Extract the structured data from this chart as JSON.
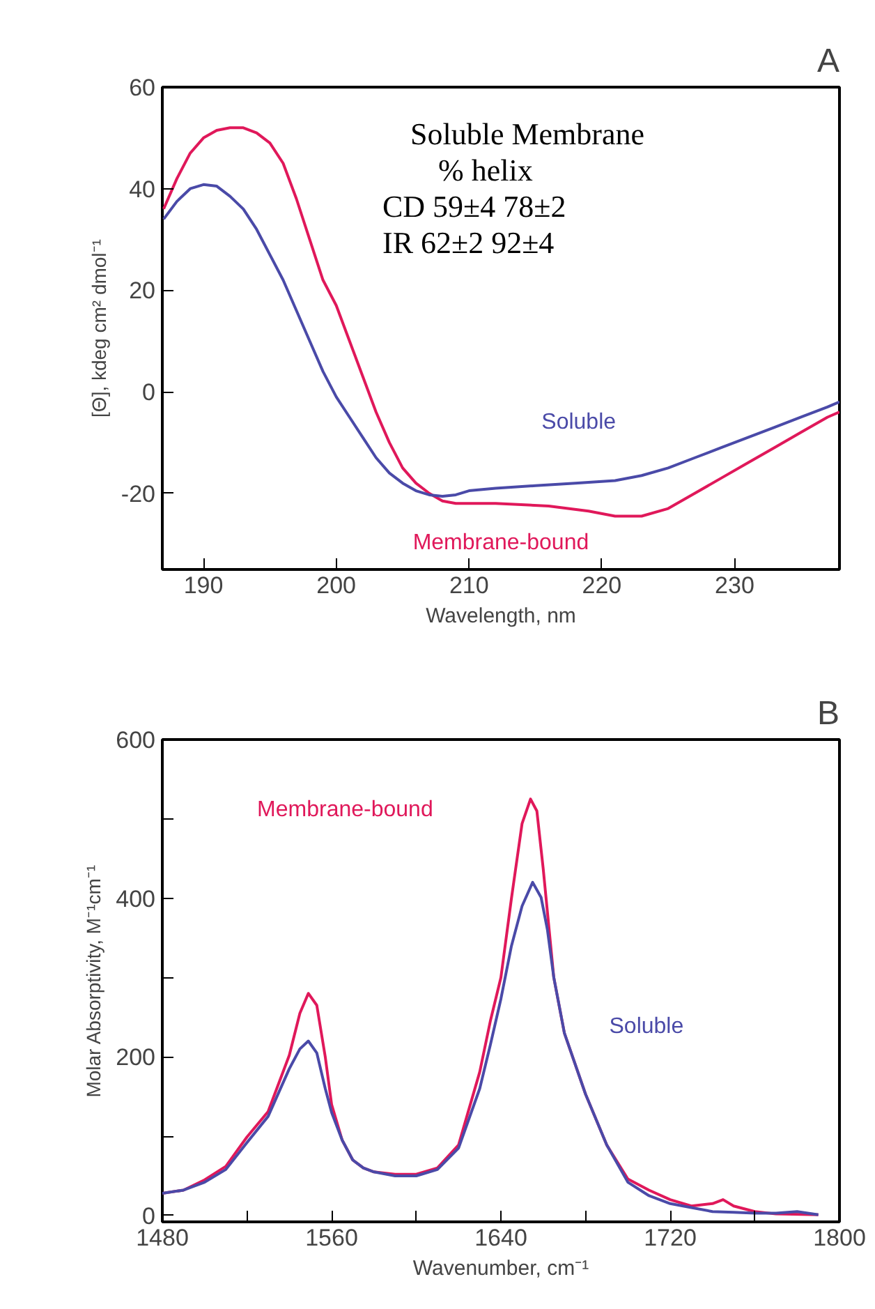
{
  "chart_data": [
    {
      "type": "line",
      "title": "A",
      "xlabel": "Wavelength, nm",
      "ylabel": "[Θ], kdeg cm² dmol⁻¹",
      "xlim": [
        186.9,
        237.9
      ],
      "ylim": [
        -35,
        60
      ],
      "xticks": [
        190,
        200,
        210,
        220,
        230
      ],
      "yticks": [
        -20,
        0,
        20,
        40,
        60
      ],
      "grid": false,
      "marker": "none",
      "line_style": "solid",
      "annotations": [
        "Soluble  Membrane",
        "% helix",
        "CD   59±4      78±2",
        "IR    62±2      92±4"
      ],
      "series": [
        {
          "name": "Membrane-bound",
          "color": "#e0185a",
          "x": [
            187,
            188,
            189,
            190,
            191,
            192,
            193,
            194,
            195,
            196,
            197,
            198,
            199,
            200,
            201,
            202,
            203,
            204,
            205,
            206,
            207,
            208,
            209,
            212,
            216,
            219,
            221,
            223,
            225,
            227,
            229,
            231,
            233,
            235,
            237,
            237.9
          ],
          "values": [
            36,
            42,
            47,
            50,
            51.5,
            52,
            52,
            51,
            49,
            45,
            38,
            30,
            22,
            17,
            10,
            3,
            -4,
            -10,
            -15,
            -18,
            -20,
            -21.5,
            -22,
            -22,
            -22.5,
            -23.5,
            -24.5,
            -24.5,
            -23,
            -20,
            -17,
            -14,
            -11,
            -8,
            -5,
            -4
          ]
        },
        {
          "name": "Soluble",
          "color": "#4a4aa8",
          "x": [
            187,
            188,
            189,
            190,
            191,
            192,
            193,
            194,
            195,
            196,
            197,
            198,
            199,
            200,
            201,
            202,
            203,
            204,
            205,
            206,
            207,
            208,
            209,
            210,
            212,
            215,
            218,
            221,
            223,
            225,
            227,
            229,
            231,
            233,
            235,
            237,
            237.9
          ],
          "values": [
            34,
            37.5,
            40,
            40.8,
            40.5,
            38.5,
            36,
            32,
            27,
            22,
            16,
            10,
            4,
            -1,
            -5,
            -9,
            -13,
            -16,
            -18,
            -19.5,
            -20.3,
            -20.6,
            -20.3,
            -19.5,
            -19,
            -18.5,
            -18,
            -17.5,
            -16.5,
            -15,
            -13,
            -11,
            -9,
            -7,
            -5,
            -3,
            -2
          ]
        }
      ]
    },
    {
      "type": "line",
      "title": "B",
      "xlabel": "Wavenumber, cm⁻¹",
      "ylabel": "Molar Absorptivity, M⁻¹cm⁻¹",
      "xlim": [
        1480,
        1800
      ],
      "ylim": [
        -8,
        600
      ],
      "xticks": [
        1480,
        {
          "value": 1520,
          "label": null
        },
        1560,
        {
          "value": 1600,
          "label": null
        },
        1640,
        {
          "value": 1680,
          "label": null
        },
        1720,
        {
          "value": 1760,
          "label": null
        },
        1800
      ],
      "yticks": [
        0,
        {
          "value": 100,
          "label": null
        },
        200,
        {
          "value": 300,
          "label": null
        },
        400,
        {
          "value": 500,
          "label": null
        },
        600
      ],
      "grid": false,
      "marker": "none",
      "line_style": "solid",
      "series": [
        {
          "name": "Membrane-bound",
          "color": "#e0185a",
          "x": [
            1480,
            1490,
            1500,
            1510,
            1520,
            1530,
            1540,
            1545,
            1549,
            1553,
            1557,
            1560,
            1565,
            1570,
            1575,
            1580,
            1590,
            1600,
            1610,
            1620,
            1630,
            1635,
            1640,
            1645,
            1650,
            1654,
            1657,
            1660,
            1665,
            1670,
            1680,
            1690,
            1700,
            1710,
            1720,
            1730,
            1740,
            1745,
            1750,
            1760,
            1770,
            1790
          ],
          "values": [
            28,
            32,
            45,
            62,
            99,
            131,
            202,
            255,
            280,
            265,
            200,
            140,
            95,
            70,
            60,
            55,
            52,
            52,
            60,
            89,
            181,
            245,
            300,
            400,
            494,
            525,
            510,
            437,
            300,
            230,
            153,
            89,
            46,
            32,
            20,
            12,
            15,
            20,
            12,
            5,
            2,
            1
          ]
        },
        {
          "name": "Soluble",
          "color": "#4a4aa8",
          "x": [
            1480,
            1490,
            1500,
            1510,
            1520,
            1530,
            1540,
            1545,
            1549,
            1553,
            1557,
            1560,
            1565,
            1570,
            1575,
            1580,
            1590,
            1600,
            1610,
            1620,
            1630,
            1635,
            1640,
            1645,
            1650,
            1655,
            1659,
            1662,
            1665,
            1670,
            1680,
            1690,
            1700,
            1710,
            1720,
            1730,
            1740,
            1750,
            1760,
            1770,
            1780,
            1790
          ],
          "values": [
            28,
            32,
            42,
            58,
            92,
            125,
            185,
            210,
            220,
            205,
            160,
            130,
            95,
            70,
            60,
            55,
            50,
            50,
            58,
            85,
            160,
            215,
            273,
            340,
            390,
            420,
            401,
            360,
            300,
            230,
            153,
            89,
            42,
            25,
            15,
            10,
            5,
            4,
            3,
            3,
            5,
            1
          ]
        }
      ]
    }
  ]
}
